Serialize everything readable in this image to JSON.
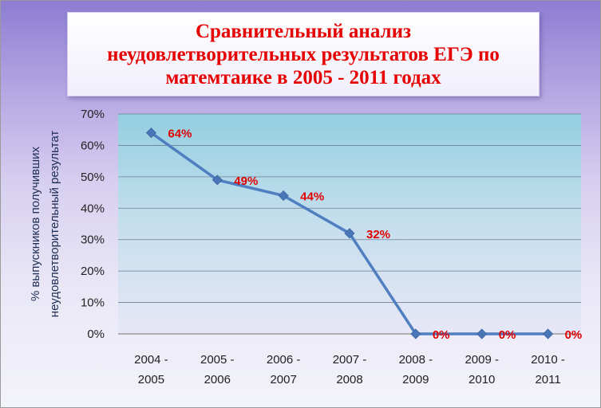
{
  "chart_data": {
    "type": "line",
    "title": "Сравнительный анализ\nнеудовлетворительных результатов ЕГЭ по\nматемтаике в 2005 - 2011 годах",
    "ylabel_lines": [
      "% выпускников получивших",
      "неудовлетворительный результат"
    ],
    "categories": [
      [
        "2004 -",
        "2005"
      ],
      [
        "2005 -",
        "2006"
      ],
      [
        "2006 -",
        "2007"
      ],
      [
        "2007 -",
        "2008"
      ],
      [
        "2008 -",
        "2009"
      ],
      [
        "2009 -",
        "2010"
      ],
      [
        "2010 -",
        "2011"
      ]
    ],
    "series": [
      {
        "values": [
          64,
          49,
          44,
          32,
          0,
          0,
          0
        ]
      }
    ],
    "data_labels": [
      "64%",
      "49%",
      "44%",
      "32%",
      "0%",
      "0%",
      "0%"
    ],
    "yticks": [
      "0%",
      "10%",
      "20%",
      "30%",
      "40%",
      "50%",
      "60%",
      "70%"
    ],
    "ylim": [
      0,
      70
    ],
    "grid": true,
    "legend": "none",
    "colors": {
      "line": "#4f7fc1",
      "marker": "#4a76b8",
      "data_label": "#e00000",
      "title": "#e60000",
      "plot_top": "#93cfe0",
      "plot_bottom": "#e7e7f6"
    }
  }
}
